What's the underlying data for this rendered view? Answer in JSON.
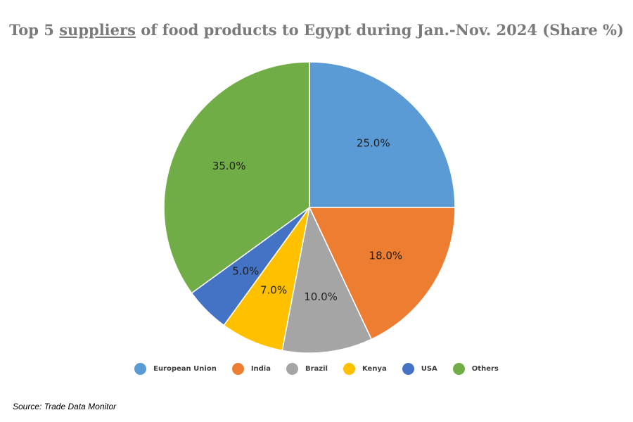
{
  "header": {
    "title_prefix": "Top 5 ",
    "title_underlined": "suppliers",
    "title_suffix": " of food products to Egypt during Jan.-Nov. 2024 (Share %)"
  },
  "chart_data": {
    "type": "pie",
    "title": "Top 5 suppliers of food products to Egypt during Jan.-Nov. 2024 (Share %)",
    "categories": [
      "European Union",
      "India",
      "Brazil",
      "Kenya",
      "USA",
      "Others"
    ],
    "values": [
      25.0,
      18.0,
      10.0,
      7.0,
      5.0,
      35.0
    ],
    "labels": [
      "25.0%",
      "18.0%",
      "10.0%",
      "7.0%",
      "5.0%",
      "35.0%"
    ],
    "colors": [
      "#5b9bd5",
      "#ed7d31",
      "#a5a5a5",
      "#ffc000",
      "#4472c4",
      "#70ad47"
    ],
    "legend_position": "bottom"
  },
  "footer": {
    "source": "Source:  Trade Data Monitor"
  }
}
